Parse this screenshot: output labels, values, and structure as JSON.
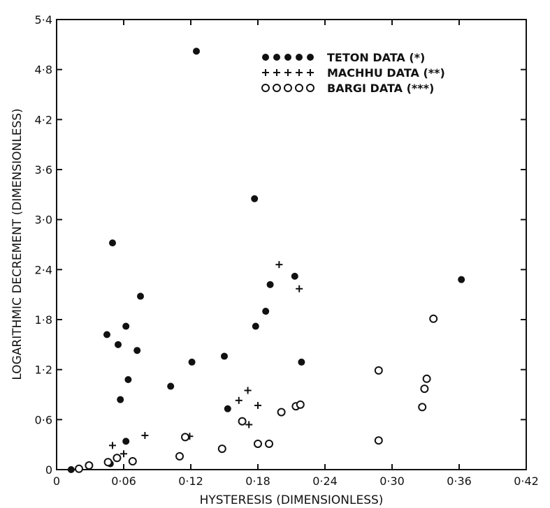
{
  "chart_data": {
    "type": "scatter",
    "xlabel": "HYSTERESIS (DIMENSIONLESS)",
    "ylabel": "LOGARITHMIC DECREMENT (DIMENSIONLESS)",
    "xlim": [
      0,
      0.42
    ],
    "ylim": [
      0,
      5.4
    ],
    "x_ticks": [
      "0",
      "0·06",
      "0·12",
      "0·18",
      "0·24",
      "0·30",
      "0·36",
      "0·42"
    ],
    "y_ticks": [
      "0",
      "0·6",
      "1·2",
      "1·8",
      "2·4",
      "3·0",
      "3·6",
      "4·2",
      "4·8",
      "5·4"
    ],
    "grid": false,
    "legend_position": "top-right",
    "series": [
      {
        "name": "TETON DATA (*)",
        "legend_symbols": "●●●●●",
        "marker": "filled-circle",
        "points": [
          [
            0.013,
            0.0
          ],
          [
            0.048,
            0.07
          ],
          [
            0.05,
            2.72
          ],
          [
            0.045,
            1.62
          ],
          [
            0.055,
            1.5
          ],
          [
            0.057,
            0.84
          ],
          [
            0.062,
            1.72
          ],
          [
            0.064,
            1.08
          ],
          [
            0.062,
            0.34
          ],
          [
            0.072,
            1.43
          ],
          [
            0.075,
            2.08
          ],
          [
            0.102,
            1.0
          ],
          [
            0.121,
            1.29
          ],
          [
            0.125,
            5.02
          ],
          [
            0.15,
            1.36
          ],
          [
            0.153,
            0.73
          ],
          [
            0.177,
            3.25
          ],
          [
            0.178,
            1.72
          ],
          [
            0.187,
            1.9
          ],
          [
            0.191,
            2.22
          ],
          [
            0.213,
            2.32
          ],
          [
            0.219,
            1.29
          ],
          [
            0.362,
            2.28
          ]
        ]
      },
      {
        "name": "MACHHU DATA (**)",
        "legend_symbols": "+++++",
        "marker": "plus",
        "points": [
          [
            0.05,
            0.29
          ],
          [
            0.06,
            0.19
          ],
          [
            0.079,
            0.41
          ],
          [
            0.119,
            0.4
          ],
          [
            0.163,
            0.83
          ],
          [
            0.171,
            0.95
          ],
          [
            0.172,
            0.54
          ],
          [
            0.18,
            0.77
          ],
          [
            0.199,
            2.46
          ],
          [
            0.217,
            2.17
          ]
        ]
      },
      {
        "name": "BARGI DATA (***)",
        "legend_symbols": "○○○○○",
        "marker": "open-circle",
        "points": [
          [
            0.02,
            0.01
          ],
          [
            0.029,
            0.05
          ],
          [
            0.046,
            0.09
          ],
          [
            0.054,
            0.14
          ],
          [
            0.068,
            0.1
          ],
          [
            0.11,
            0.16
          ],
          [
            0.115,
            0.39
          ],
          [
            0.148,
            0.25
          ],
          [
            0.166,
            0.58
          ],
          [
            0.18,
            0.31
          ],
          [
            0.19,
            0.31
          ],
          [
            0.201,
            0.69
          ],
          [
            0.214,
            0.76
          ],
          [
            0.218,
            0.78
          ],
          [
            0.288,
            0.35
          ],
          [
            0.288,
            1.19
          ],
          [
            0.327,
            0.75
          ],
          [
            0.329,
            0.97
          ],
          [
            0.331,
            1.09
          ],
          [
            0.337,
            1.81
          ]
        ]
      }
    ]
  }
}
